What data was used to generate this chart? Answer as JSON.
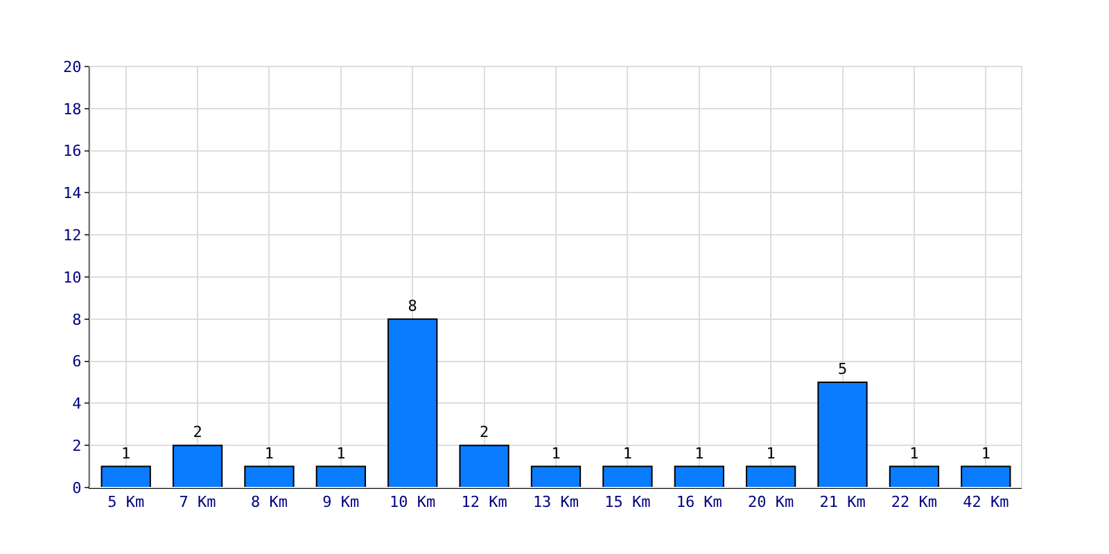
{
  "chart_data": {
    "type": "bar",
    "categories": [
      "5 Km",
      "7 Km",
      "8 Km",
      "9 Km",
      "10 Km",
      "12 Km",
      "13 Km",
      "15 Km",
      "16 Km",
      "20 Km",
      "21 Km",
      "22 Km",
      "42 Km"
    ],
    "values": [
      1,
      2,
      1,
      1,
      8,
      2,
      1,
      1,
      1,
      1,
      5,
      1,
      1
    ],
    "color": "#0a7cff",
    "ylim": [
      0,
      20
    ],
    "yticks": [
      0,
      2,
      4,
      6,
      8,
      10,
      12,
      14,
      16,
      18,
      20
    ],
    "grid": true,
    "data_labels": true
  }
}
